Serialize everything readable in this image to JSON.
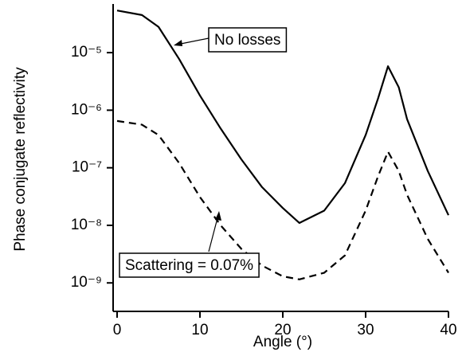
{
  "chart_data": {
    "type": "line",
    "x_label": "Angle (°)",
    "y_label": "Phase conjugate reflectivity",
    "x": [
      0,
      3,
      5,
      7.5,
      10,
      12.5,
      15,
      17.5,
      20,
      22,
      25,
      27.5,
      30,
      31.5,
      32.7,
      34,
      35,
      37.5,
      40
    ],
    "series": [
      {
        "name": "No losses",
        "color": "#000000",
        "dash": "solid",
        "values": [
          5.4e-05,
          4.5e-05,
          2.8e-05,
          7.7e-06,
          1.8e-06,
          4.8e-07,
          1.4e-07,
          4.6e-08,
          2e-08,
          1.1e-08,
          1.8e-08,
          5.4e-08,
          3.7e-07,
          1.6e-06,
          5.8e-06,
          2.5e-06,
          7e-07,
          8.8e-08,
          1.5e-08
        ]
      },
      {
        "name": "Scattering = 0.07%",
        "color": "#000000",
        "dash": "dashed",
        "values": [
          6.5e-07,
          5.6e-07,
          3.7e-07,
          1.2e-07,
          3.1e-08,
          1e-08,
          3.9e-09,
          2e-09,
          1.3e-09,
          1.15e-09,
          1.5e-09,
          3e-09,
          1.8e-08,
          7.1e-08,
          1.9e-07,
          8.8e-08,
          3.4e-08,
          5.8e-09,
          1.5e-09
        ]
      }
    ],
    "xlim": [
      0,
      40
    ],
    "xticks": [
      0,
      10,
      20,
      30,
      40
    ],
    "ylim": [
      3.2e-10,
      7e-05
    ],
    "log_y": true,
    "yticks": [
      {
        "value": 1e-09,
        "label": "10⁻⁹"
      },
      {
        "value": 1e-08,
        "label": "10⁻⁸"
      },
      {
        "value": 1e-07,
        "label": "10⁻⁷"
      },
      {
        "value": 1e-06,
        "label": "10⁻⁶"
      },
      {
        "value": 1e-05,
        "label": "10⁻⁵"
      }
    ]
  }
}
